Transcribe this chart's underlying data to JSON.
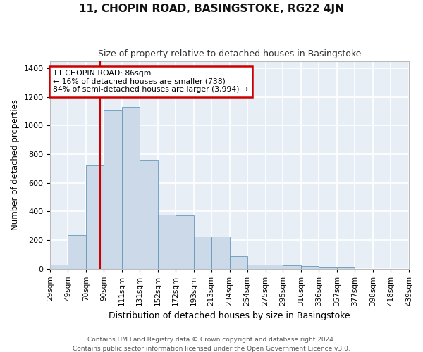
{
  "title": "11, CHOPIN ROAD, BASINGSTOKE, RG22 4JN",
  "subtitle": "Size of property relative to detached houses in Basingstoke",
  "xlabel": "Distribution of detached houses by size in Basingstoke",
  "ylabel": "Number of detached properties",
  "bar_color": "#ccd9e8",
  "bar_edge_color": "#6699bb",
  "axes_background_color": "#e8eef5",
  "figure_background_color": "#ffffff",
  "grid_color": "#ffffff",
  "property_line_x": 86,
  "property_line_color": "#cc0000",
  "annotation_text": "11 CHOPIN ROAD: 86sqm\n← 16% of detached houses are smaller (738)\n84% of semi-detached houses are larger (3,994) →",
  "annotation_box_color": "#cc0000",
  "footer_line1": "Contains HM Land Registry data © Crown copyright and database right 2024.",
  "footer_line2": "Contains public sector information licensed under the Open Government Licence v3.0.",
  "bin_edges": [
    29,
    49,
    70,
    90,
    111,
    131,
    152,
    172,
    193,
    213,
    234,
    254,
    275,
    295,
    316,
    336,
    357,
    377,
    398,
    418,
    439
  ],
  "bar_heights": [
    30,
    235,
    720,
    1110,
    1130,
    760,
    378,
    375,
    225,
    225,
    88,
    30,
    28,
    25,
    20,
    14,
    12,
    0,
    0,
    0
  ],
  "ylim": [
    0,
    1450
  ],
  "xlim": [
    29,
    439
  ]
}
